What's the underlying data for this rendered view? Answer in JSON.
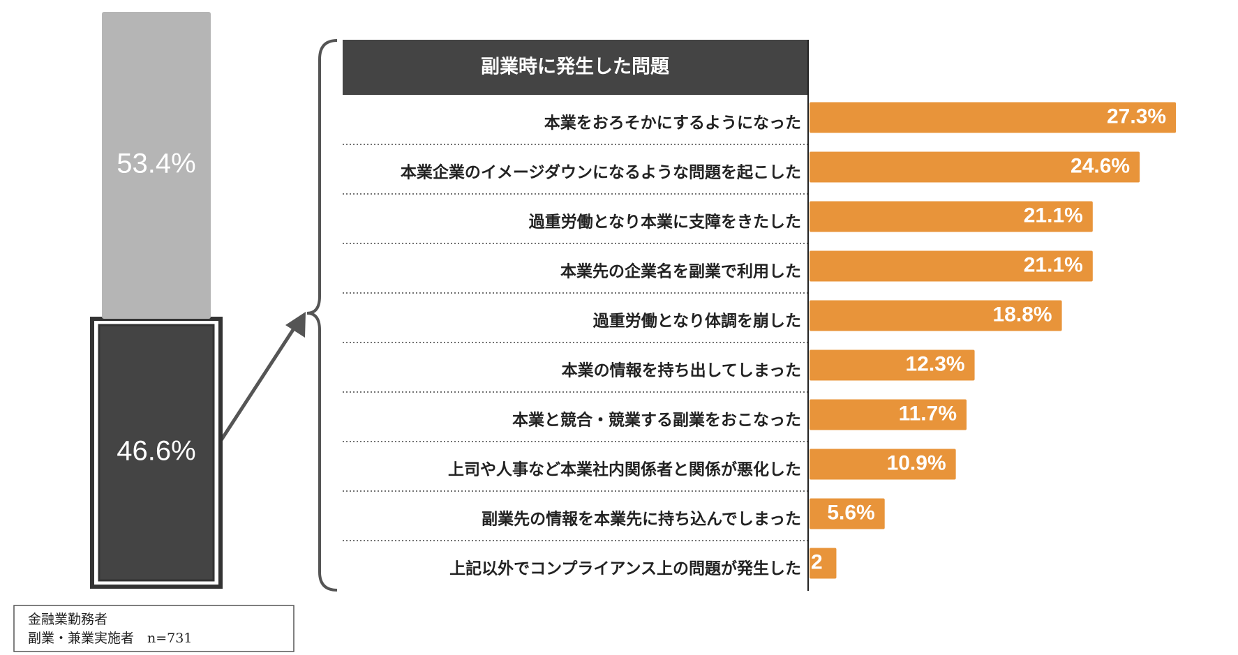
{
  "chart_data": [
    {
      "type": "stacked-column",
      "ylim": [
        0,
        100
      ],
      "series": [
        {
          "color": "#444444",
          "values": [
            46.6
          ],
          "value_labels": [
            "46.6%"
          ]
        },
        {
          "color": "#b5b5b5",
          "values": [
            53.4
          ],
          "value_labels": [
            "53.4%"
          ]
        }
      ]
    },
    {
      "type": "barh",
      "title": "副業時に発生した問題",
      "color": "#e8943a",
      "xlim": [
        0,
        30
      ],
      "categories": [
        "本業をおろそかにするようになった",
        "本業企業のイメージダウンになるような問題を起こした",
        "過重労働となり本業に支障をきたした",
        "本業先の企業名を副業で利用した",
        "過重労働となり体調を崩した",
        "本業の情報を持ち出してしまった",
        "本業と競合・競業する副業をおこなった",
        "上司や人事など本業社内関係者と関係が悪化した",
        "副業先の情報を本業先に持ち込んでしまった",
        "上記以外でコンプライアンス上の問題が発生した"
      ],
      "values": [
        27.3,
        24.6,
        21.1,
        21.1,
        18.8,
        12.3,
        11.7,
        10.9,
        5.6,
        2
      ],
      "value_labels": [
        "27.3%",
        "24.6%",
        "21.1%",
        "21.1%",
        "18.8%",
        "12.3%",
        "11.7%",
        "10.9%",
        "5.6%",
        "2"
      ]
    }
  ],
  "note": {
    "lines": [
      "金融業勤務者",
      "副業・兼業実施者　n=731"
    ]
  }
}
